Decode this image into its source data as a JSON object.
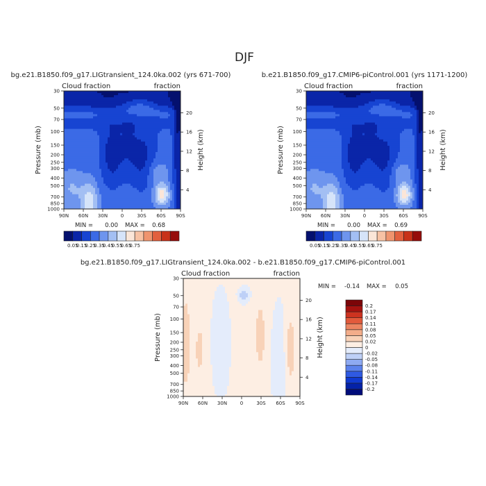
{
  "page": {
    "title": "DJF"
  },
  "palettes": {
    "abs": [
      "#04106e",
      "#0a25a8",
      "#1744d2",
      "#3b6ae6",
      "#6e95ee",
      "#a3bff3",
      "#d6e4f9",
      "#fbe6d8",
      "#f7c2a4",
      "#ef946e",
      "#e2603e",
      "#c83219",
      "#960d0b"
    ],
    "diff": [
      "#000c7a",
      "#0422a8",
      "#103ad0",
      "#2f5ae2",
      "#5c82ec",
      "#8eaaf2",
      "#bed0f7",
      "#e4ecfb",
      "#fdeee3",
      "#f8d2b8",
      "#f3ad8a",
      "#ec8562",
      "#e25a3c",
      "#cd3320",
      "#a6120f",
      "#7c0508"
    ]
  },
  "chart_data": [
    {
      "type": "heatmap",
      "id": "panel1",
      "title": "bg.e21.B1850.f09_g17.LIGtransient_124.0ka.002 (yrs 671-700)",
      "left_label": "Cloud fraction",
      "right_label": "fraction",
      "ylabel": "Pressure (mb)",
      "y2label": "Height (km)",
      "x_ticks": [
        "90N",
        "60N",
        "30N",
        "0",
        "30S",
        "60S",
        "90S"
      ],
      "x_tick_values": [
        90,
        60,
        30,
        0,
        -30,
        -60,
        -90
      ],
      "p_ticks": [
        "1000",
        "850",
        "700",
        "500",
        "400",
        "300",
        "250",
        "200",
        "150",
        "100",
        "70",
        "50",
        "30"
      ],
      "p_tick_values": [
        1000,
        850,
        700,
        500,
        400,
        300,
        250,
        200,
        150,
        100,
        70,
        50,
        30
      ],
      "h_ticks": [
        "4",
        "8",
        "12",
        "16",
        "20"
      ],
      "h_tick_values": [
        4,
        8,
        12,
        16,
        20
      ],
      "min_label": "MIN =",
      "min_value": "0.00",
      "max_label": "MAX =",
      "max_value": "0.68",
      "max_num": 0.68
    },
    {
      "type": "heatmap",
      "id": "panel2",
      "title": "b.e21.B1850.f09_g17.CMIP6-piControl.001 (yrs 1171-1200)",
      "left_label": "Cloud fraction",
      "right_label": "fraction",
      "ylabel": "Pressure (mb)",
      "y2label": "Height (km)",
      "x_ticks": [
        "90N",
        "60N",
        "30N",
        "0",
        "30S",
        "60S",
        "90S"
      ],
      "x_tick_values": [
        90,
        60,
        30,
        0,
        -30,
        -60,
        -90
      ],
      "p_ticks": [
        "1000",
        "850",
        "700",
        "500",
        "400",
        "300",
        "250",
        "200",
        "150",
        "100",
        "70",
        "50",
        "30"
      ],
      "p_tick_values": [
        1000,
        850,
        700,
        500,
        400,
        300,
        250,
        200,
        150,
        100,
        70,
        50,
        30
      ],
      "h_ticks": [
        "4",
        "8",
        "12",
        "16",
        "20"
      ],
      "h_tick_values": [
        4,
        8,
        12,
        16,
        20
      ],
      "min_label": "MIN =",
      "min_value": "0.00",
      "max_label": "MAX =",
      "max_value": "0.69",
      "max_num": 0.69
    },
    {
      "type": "heatmap",
      "id": "panel3",
      "title": "bg.e21.B1850.f09_g17.LIGtransient_124.0ka.002 - b.e21.B1850.f09_g17.CMIP6-piControl.001",
      "left_label": "Cloud fraction",
      "right_label": "fraction",
      "ylabel": "Pressure (mb)",
      "y2label": "Height (km)",
      "x_ticks": [
        "90N",
        "60N",
        "30N",
        "0",
        "30S",
        "60S",
        "90S"
      ],
      "x_tick_values": [
        90,
        60,
        30,
        0,
        -30,
        -60,
        -90
      ],
      "p_ticks": [
        "1000",
        "850",
        "700",
        "500",
        "400",
        "300",
        "250",
        "200",
        "150",
        "100",
        "70",
        "50",
        "30"
      ],
      "p_tick_values": [
        1000,
        850,
        700,
        500,
        400,
        300,
        250,
        200,
        150,
        100,
        70,
        50,
        30
      ],
      "h_ticks": [
        "4",
        "8",
        "12",
        "16",
        "20"
      ],
      "h_tick_values": [
        4,
        8,
        12,
        16,
        20
      ],
      "min_label": "MIN =",
      "min_value": "-0.14",
      "max_label": "MAX =",
      "max_value": "0.05"
    }
  ],
  "colorbars": {
    "abs": {
      "levels": [
        "0.05",
        "0.15",
        "0.25",
        "0.35",
        "0.45",
        "0.55",
        "0.65",
        "0.75"
      ]
    },
    "diff": {
      "levels": [
        "-0.2",
        "-0.17",
        "-0.14",
        "-0.11",
        "-0.08",
        "-0.05",
        "-0.02",
        "0",
        "0.02",
        "0.05",
        "0.08",
        "0.11",
        "0.14",
        "0.17",
        "0.2"
      ]
    }
  }
}
